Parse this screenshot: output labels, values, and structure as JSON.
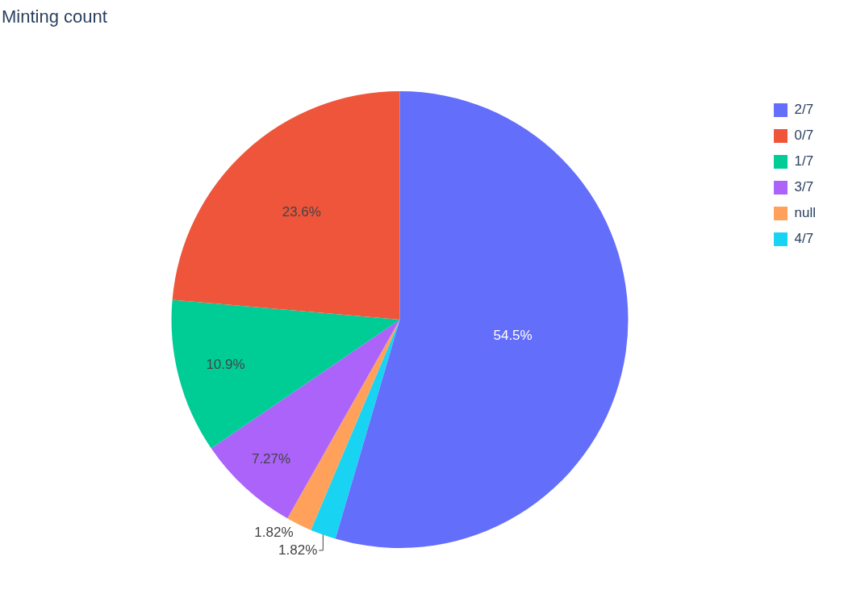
{
  "chart_data": {
    "type": "pie",
    "title": "Minting count",
    "categories": [
      "2/7",
      "0/7",
      "1/7",
      "3/7",
      "null",
      "4/7"
    ],
    "values": [
      54.5,
      23.6,
      10.9,
      7.27,
      1.82,
      1.82
    ],
    "value_labels": [
      "54.5%",
      "23.6%",
      "10.9%",
      "7.27%",
      "1.82%",
      "1.82%"
    ],
    "colors": [
      "#636efa",
      "#ef553b",
      "#00cc96",
      "#ab63fa",
      "#ffa15a",
      "#19d3f3"
    ],
    "data_labels": true,
    "legend": "top-right"
  }
}
